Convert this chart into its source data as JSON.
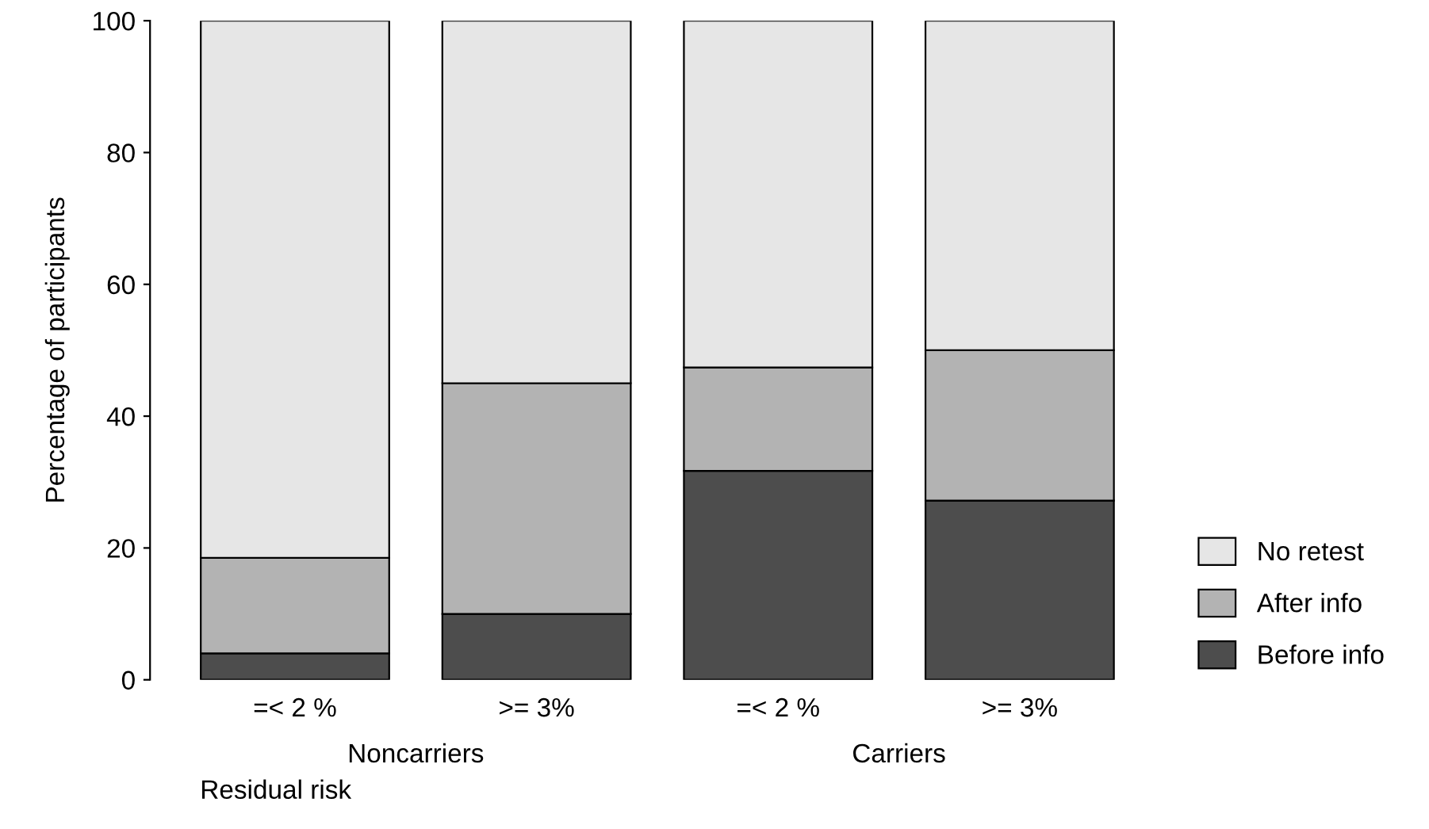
{
  "chart_data": {
    "type": "bar",
    "stacked": true,
    "xlabel": "Residual risk",
    "ylabel": "Percentage of participants",
    "categories": [
      "=< 2 %",
      ">= 3%",
      "=< 2 %",
      ">= 3%"
    ],
    "series": [
      {
        "name": "Before info",
        "color": "#4d4d4d",
        "values": [
          4,
          10,
          31.7,
          27.2
        ]
      },
      {
        "name": "After info",
        "color": "#b3b3b3",
        "values": [
          14.5,
          35,
          15.7,
          22.8
        ]
      },
      {
        "name": "No retest",
        "color": "#e6e6e6",
        "values": [
          81.5,
          55,
          52.6,
          50
        ]
      }
    ],
    "annotations": [
      "Noncarriers",
      "Carriers"
    ],
    "ylim": [
      0,
      100
    ],
    "yticks": [
      0,
      20,
      40,
      60,
      80,
      100
    ],
    "grid": false,
    "legend": "right"
  }
}
